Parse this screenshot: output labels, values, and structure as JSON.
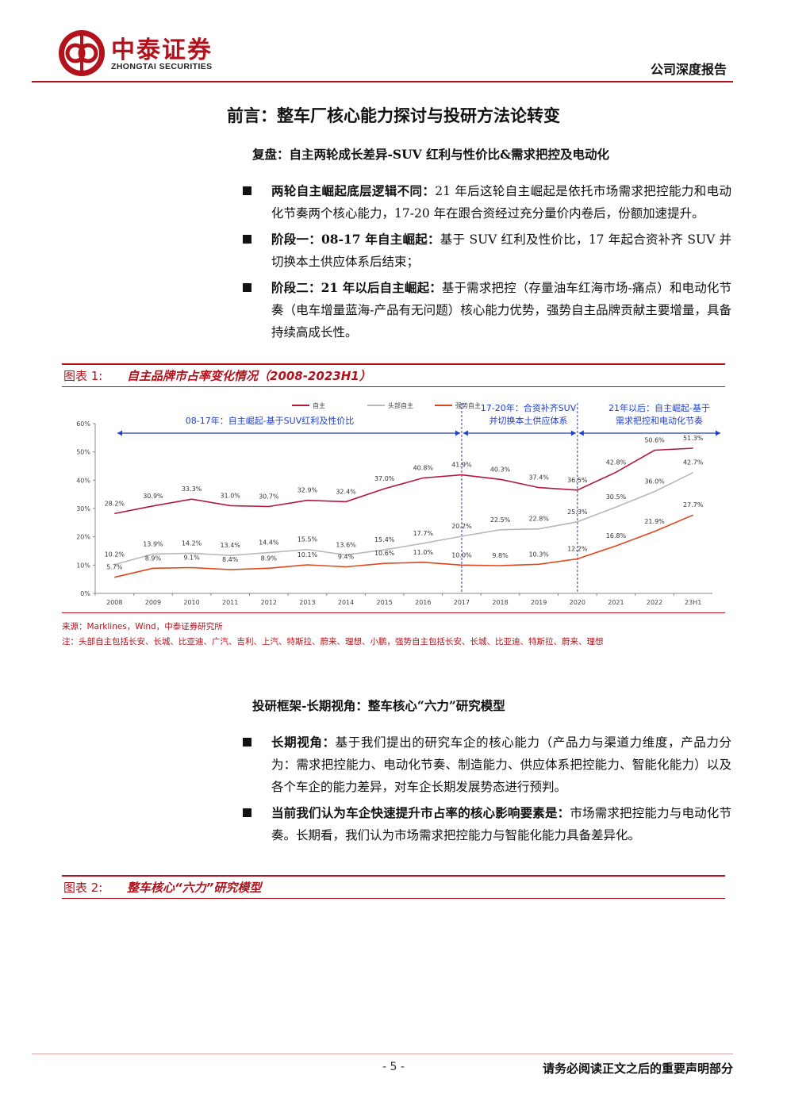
{
  "header": {
    "logo_cn": "中泰证券",
    "logo_en": "ZHONGTAI SECURITIES",
    "report_type": "公司深度报告"
  },
  "section_title": "前言：整车厂核心能力探讨与投研方法论转变",
  "subsection1_title": "复盘：自主两轮成长差异-SUV 红利与性价比&需求把控及电动化",
  "bullets1": [
    {
      "bold": "两轮自主崛起底层逻辑不同：",
      "text": "21 年后这轮自主崛起是依托市场需求把控能力和电动化节奏两个核心能力，17-20 年在跟合资经过充分量价内卷后，份额加速提升。"
    },
    {
      "bold": "阶段一：08-17 年自主崛起：",
      "text": "基于 SUV 红利及性价比，17 年起合资补齐 SUV 并切换本土供应体系后结束；"
    },
    {
      "bold": "阶段二：21 年以后自主崛起：",
      "text": "基于需求把控（存量油车红海市场-痛点）和电动化节奏（电车增量蓝海-产品有无问题）核心能力优势，强势自主品牌贡献主要增量，具备持续高成长性。"
    }
  ],
  "figure1": {
    "label": "图表 1:",
    "title": "自主品牌市占率变化情况（2008-2023H1）",
    "source": "来源：Marklines，Wind，中泰证券研究所",
    "note": "注：头部自主包括长安、长城、比亚迪、广汽、吉利、上汽、特斯拉、蔚来、理想、小鹏，强势自主包括长安、长城、比亚迪、特斯拉、蔚来、理想"
  },
  "chart_data": {
    "type": "line",
    "categories": [
      "2008",
      "2009",
      "2010",
      "2011",
      "2012",
      "2013",
      "2014",
      "2015",
      "2016",
      "2017",
      "2018",
      "2019",
      "2020",
      "2021",
      "2022",
      "23H1"
    ],
    "ylim": [
      0,
      60
    ],
    "yticks": [
      "0%",
      "10%",
      "20%",
      "30%",
      "40%",
      "50%",
      "60%"
    ],
    "grid": false,
    "legend_position": "top",
    "series": [
      {
        "name": "自主",
        "color": "#b3163a",
        "values": [
          28.2,
          30.9,
          33.3,
          31.0,
          30.7,
          32.9,
          32.4,
          37.0,
          40.8,
          41.9,
          40.3,
          37.4,
          36.5,
          42.8,
          50.6,
          51.3
        ],
        "labels": [
          "28.2%",
          "30.9%",
          "33.3%",
          "31.0%",
          "30.7%",
          "32.9%",
          "32.4%",
          "37.0%",
          "40.8%",
          "41.9%",
          "40.3%",
          "37.4%",
          "36.5%",
          "42.8%",
          "50.6%",
          "51.3%"
        ]
      },
      {
        "name": "头部自主",
        "color": "#b8b8b8",
        "values": [
          10.2,
          13.9,
          14.2,
          13.4,
          14.4,
          15.5,
          13.6,
          15.4,
          17.7,
          20.2,
          22.5,
          22.8,
          25.3,
          30.5,
          36.0,
          42.7
        ],
        "labels": [
          "10.2%",
          "13.9%",
          "14.2%",
          "13.4%",
          "14.4%",
          "15.5%",
          "13.6%",
          "15.4%",
          "17.7%",
          "20.2%",
          "22.5%",
          "22.8%",
          "25.3%",
          "30.5%",
          "36.0%",
          "42.7%"
        ]
      },
      {
        "name": "强势自主",
        "color": "#e0461a",
        "values": [
          5.7,
          8.9,
          9.1,
          8.4,
          8.9,
          10.1,
          9.4,
          10.6,
          11.0,
          10.0,
          9.8,
          10.3,
          12.2,
          16.8,
          21.9,
          27.7
        ],
        "labels": [
          "5.7%",
          "8.9%",
          "9.1%",
          "8.4%",
          "8.9%",
          "10.1%",
          "9.4%",
          "10.6%",
          "11.0%",
          "10.0%",
          "9.8%",
          "10.3%",
          "12.2%",
          "16.8%",
          "21.9%",
          "27.7%"
        ]
      }
    ],
    "annotations": {
      "phase1": "08-17年：自主崛起-基于SUV红利及性价比",
      "phase2_line1": "17-20年：合资补齐SUV",
      "phase2_line2": "并切换本土供应体系",
      "phase3_line1": "21年以后：自主崛起-基于",
      "phase3_line2": "需求把控和电动化节奏"
    }
  },
  "subsection2_title": "投研框架-长期视角：整车核心“六力”研究模型",
  "bullets2": [
    {
      "bold": "长期视角：",
      "text": "基于我们提出的研究车企的核心能力（产品力与渠道力维度，产品力分为：需求把控能力、电动化节奏、制造能力、供应体系把控能力、智能化能力）以及各个车企的能力差异，对车企长期发展势态进行预判。"
    },
    {
      "bold": "当前我们认为车企快速提升市占率的核心影响要素是：",
      "text": "市场需求把控能力与电动化节奏。长期看，我们认为市场需求把控能力与智能化能力具备差异化。"
    }
  ],
  "figure2": {
    "label": "图表 2:",
    "title": "整车核心“六力”研究模型"
  },
  "footer": {
    "page": "- 5 -",
    "disclaimer": "请务必阅读正文之后的重要声明部分"
  },
  "colors": {
    "brand_red": "#b3121c",
    "annotation_blue": "#1f3fd0"
  }
}
